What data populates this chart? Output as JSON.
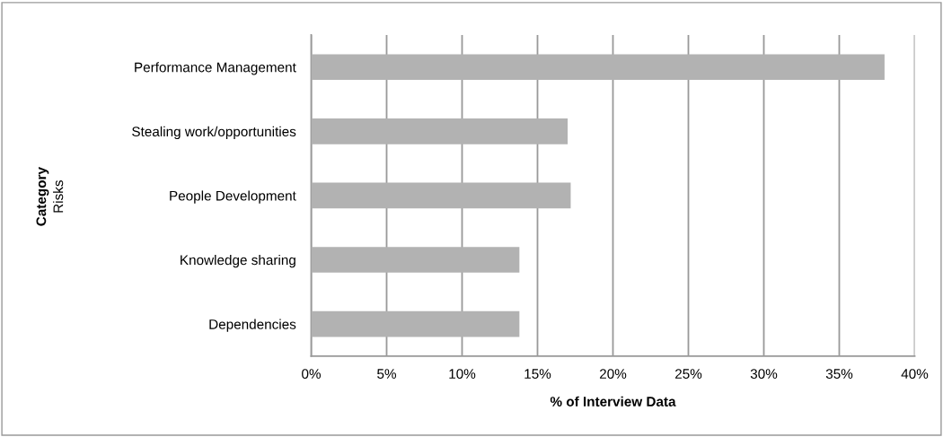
{
  "chart_data": {
    "type": "bar",
    "orientation": "horizontal",
    "categories": [
      "Performance Management",
      "Stealing work/opportunities",
      "People Development",
      "Knowledge sharing",
      "Dependencies"
    ],
    "values": [
      38,
      17,
      17.2,
      13.8,
      13.8
    ],
    "color": "#b2b2b2",
    "xlabel": "% of Interview Data",
    "annotations": [
      "Category",
      "Risks"
    ],
    "xlim": [
      0,
      40
    ],
    "xticks": [
      {
        "value": 0,
        "label": "0%"
      },
      {
        "value": 5,
        "label": "5%"
      },
      {
        "value": 10,
        "label": "10%"
      },
      {
        "value": 15,
        "label": "15%"
      },
      {
        "value": 20,
        "label": "20%"
      },
      {
        "value": 25,
        "label": "25%"
      },
      {
        "value": 30,
        "label": "30%"
      },
      {
        "value": 35,
        "label": "35%"
      },
      {
        "value": 40,
        "label": "40%"
      }
    ],
    "grid": "x"
  }
}
